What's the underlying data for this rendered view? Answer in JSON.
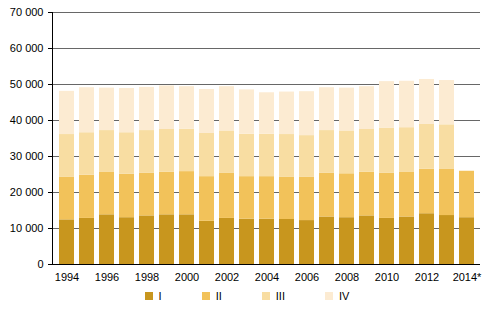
{
  "chart_data": {
    "type": "bar",
    "stacked": true,
    "grid": true,
    "legend": "bottom",
    "categories": [
      "1994",
      null,
      "1996",
      null,
      "1998",
      null,
      "2000",
      null,
      "2002",
      null,
      "2004",
      null,
      "2006",
      null,
      "2008",
      null,
      "2010",
      null,
      "2012",
      null,
      "2014*"
    ],
    "series": [
      {
        "name": "I",
        "color": "#c8961e",
        "values": [
          12400,
          12800,
          13800,
          13000,
          13500,
          13800,
          13800,
          12000,
          12800,
          12600,
          12600,
          12500,
          12200,
          13200,
          13000,
          13500,
          12800,
          13200,
          14100,
          13600,
          13000
        ]
      },
      {
        "name": "II",
        "color": "#f2c25a",
        "values": [
          11900,
          12000,
          11900,
          12100,
          11900,
          11800,
          12000,
          12400,
          12500,
          11800,
          11800,
          11800,
          12100,
          12200,
          12200,
          12100,
          12600,
          12500,
          12400,
          12800,
          12900
        ]
      },
      {
        "name": "III",
        "color": "#f8dda2",
        "values": [
          11800,
          11800,
          11500,
          11500,
          11800,
          11900,
          11800,
          12000,
          11800,
          11800,
          11800,
          11800,
          11500,
          11800,
          11900,
          11900,
          12500,
          12300,
          12400,
          12400,
          null
        ]
      },
      {
        "name": "IV",
        "color": "#fcebd2",
        "values": [
          12000,
          12500,
          11800,
          12300,
          12000,
          12100,
          11800,
          12200,
          12300,
          12300,
          11500,
          11800,
          12200,
          11900,
          11900,
          11900,
          12900,
          12900,
          12500,
          12300,
          null
        ]
      }
    ],
    "ylim": [
      0,
      70000
    ],
    "yticks": [
      0,
      {
        "value": 10000,
        "label": "10 000"
      },
      {
        "value": 20000,
        "label": "20 000"
      },
      {
        "value": 30000,
        "label": "30 000"
      },
      {
        "value": 40000,
        "label": "40 000"
      },
      {
        "value": 50000,
        "label": "50 000"
      },
      {
        "value": 60000,
        "label": "60 000"
      },
      {
        "value": 70000,
        "label": "70 000"
      }
    ]
  }
}
